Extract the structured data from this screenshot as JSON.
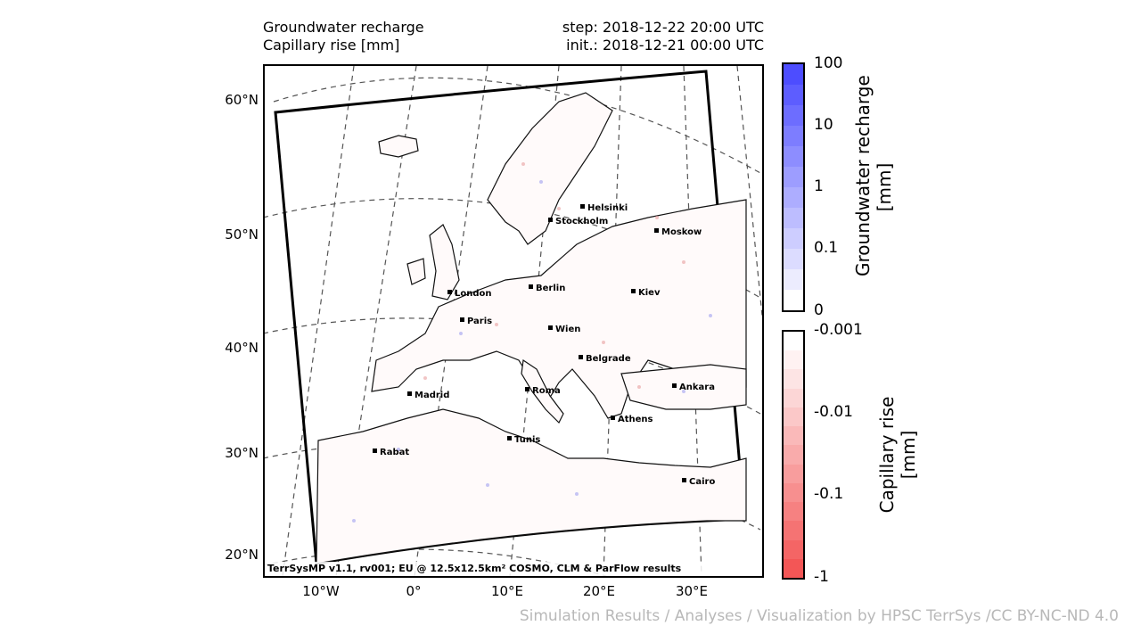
{
  "header": {
    "left_line1": "Groundwater recharge",
    "left_line2": "Capillary rise [mm]",
    "right_line1": "step: 2018-12-22 20:00 UTC",
    "right_line2": "init.: 2018-12-21 00:00 UTC"
  },
  "lat_labels": [
    "60°N",
    "50°N",
    "40°N",
    "30°N",
    "20°N"
  ],
  "lon_labels": [
    "10°W",
    "0°",
    "10°E",
    "20°E",
    "30°E"
  ],
  "cities": [
    {
      "name": "Helsinki"
    },
    {
      "name": "Stockholm"
    },
    {
      "name": "Moskow"
    },
    {
      "name": "London"
    },
    {
      "name": "Berlin"
    },
    {
      "name": "Kiev"
    },
    {
      "name": "Paris"
    },
    {
      "name": "Wien"
    },
    {
      "name": "Belgrade"
    },
    {
      "name": "Madrid"
    },
    {
      "name": "Roma"
    },
    {
      "name": "Ankara"
    },
    {
      "name": "Athens"
    },
    {
      "name": "Tunis"
    },
    {
      "name": "Rabat"
    },
    {
      "name": "Cairo"
    }
  ],
  "map_credit": "TerrSysMP v1.1, rv001; EU @ 12.5x12.5km² COSMO, CLM & ParFlow results",
  "colorbar_top": {
    "title_line1": "Groundwater recharge",
    "title_line2": "[mm]",
    "ticks": [
      "100",
      "10",
      "1",
      "0.1",
      "0"
    ],
    "colors": [
      "#4d4dff",
      "#5d5dff",
      "#6d6dff",
      "#7d7dff",
      "#8d8dff",
      "#9d9dff",
      "#adadff",
      "#bdbdff",
      "#cdcdff",
      "#dcdcff",
      "#ececfe",
      "#ffffff"
    ]
  },
  "colorbar_bottom": {
    "title_line1": "Capillary rise",
    "title_line2": "[mm]",
    "ticks": [
      "-0.001",
      "-0.01",
      "-0.1",
      "-1"
    ],
    "colors": [
      "#ffffff",
      "#fff2f2",
      "#fde4e4",
      "#fcd6d6",
      "#fbc8c8",
      "#fab9b9",
      "#f9abab",
      "#f89d9d",
      "#f78f8f",
      "#f68181",
      "#f57373",
      "#f46565",
      "#f35656"
    ]
  },
  "footer": "Simulation Results / Analyses / Visualization by HPSC TerrSys /CC BY-NC-ND 4.0"
}
